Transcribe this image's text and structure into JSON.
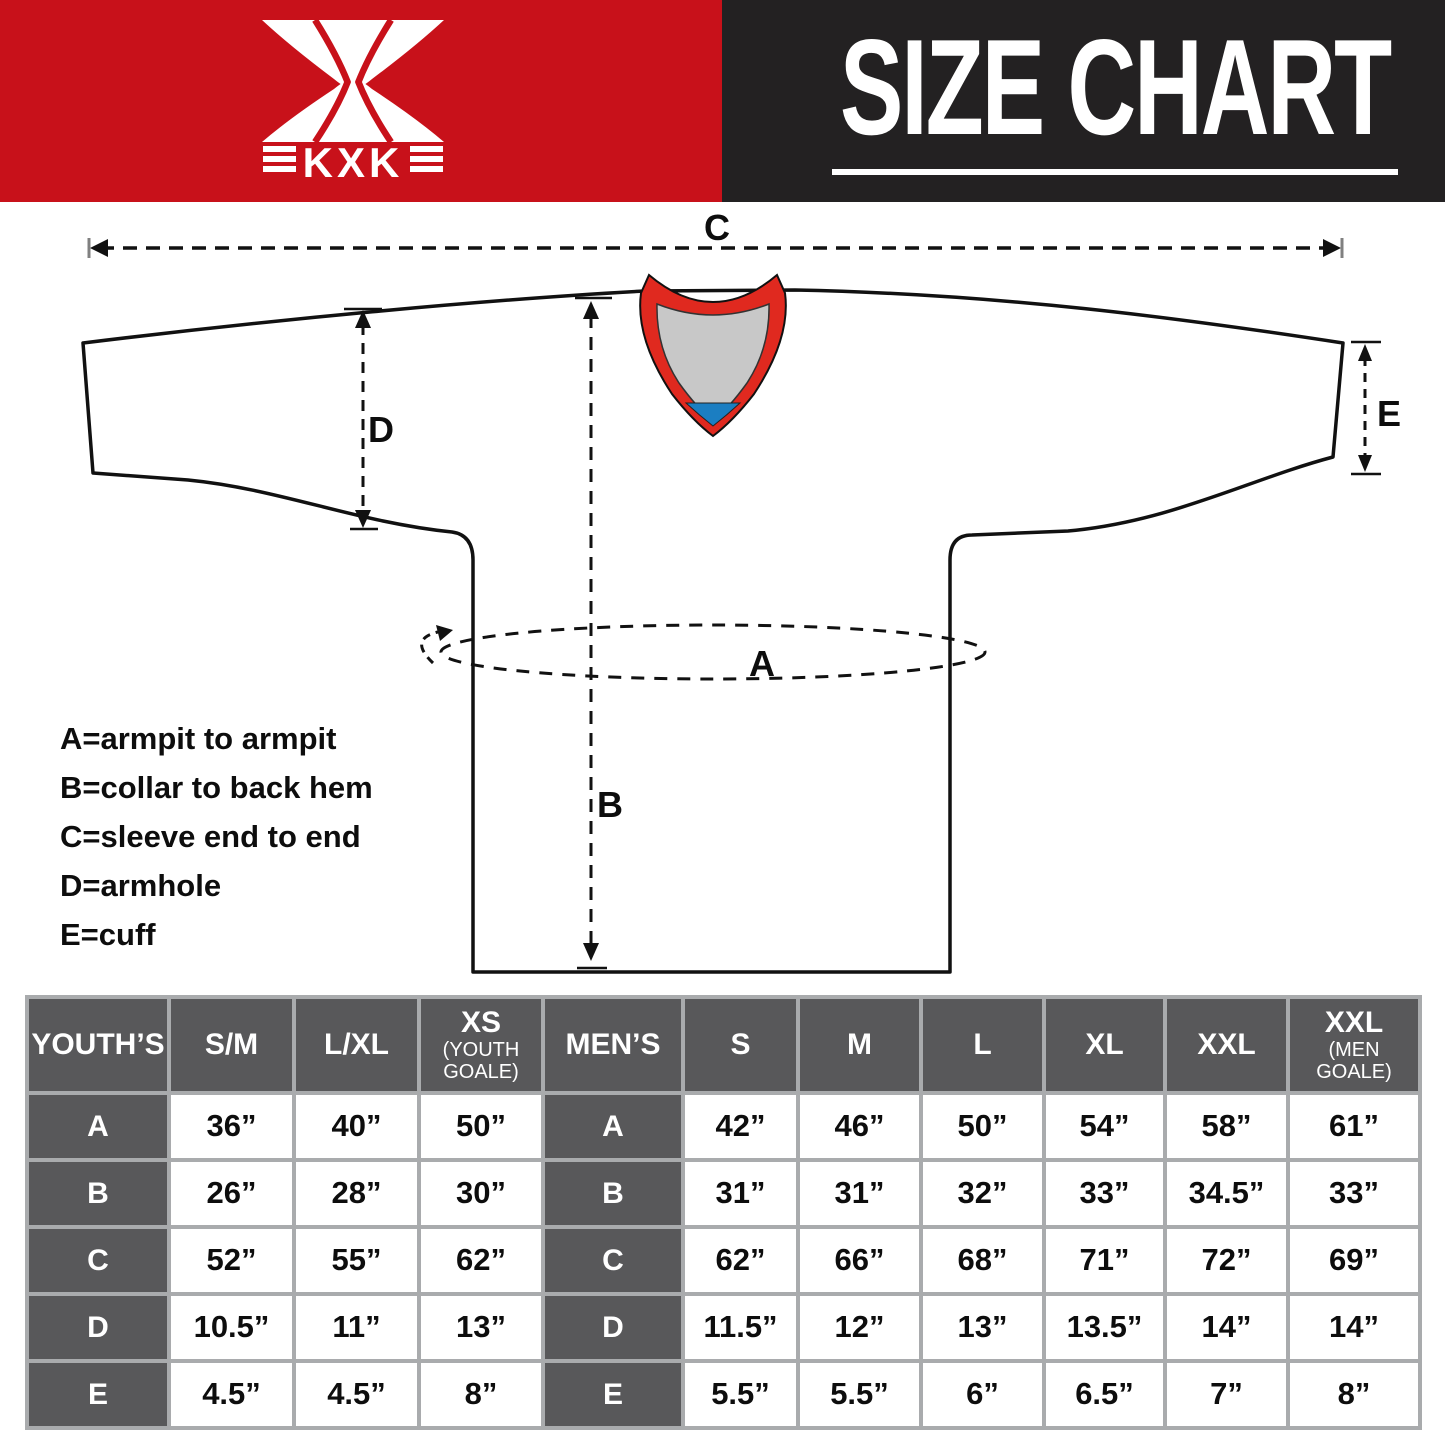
{
  "header": {
    "logo_text": "KXK",
    "title": "SIZE CHART"
  },
  "colors": {
    "brand_red": "#c8111a",
    "header_dark": "#232122",
    "collar_red": "#e0291f",
    "collar_gray": "#c8c8c8",
    "collar_blue": "#1b7ec2",
    "table_header_gray": "#58585a",
    "table_grid_gray": "#a9abad"
  },
  "diagram": {
    "labels": {
      "a": "A",
      "b": "B",
      "c": "C",
      "d": "D",
      "e": "E"
    },
    "legend": [
      "A=armpit to armpit",
      "B=collar to back hem",
      "C=sleeve end to end",
      "D=armhole",
      "E=cuff"
    ]
  },
  "table": {
    "youth": {
      "title": "YOUTH’S",
      "columns": [
        {
          "size": "S/M",
          "note": ""
        },
        {
          "size": "L/XL",
          "note": ""
        },
        {
          "size": "XS",
          "note": "(YOUTH GOALE)"
        }
      ]
    },
    "men": {
      "title": "MEN’S",
      "columns": [
        {
          "size": "S",
          "note": ""
        },
        {
          "size": "M",
          "note": ""
        },
        {
          "size": "L",
          "note": ""
        },
        {
          "size": "XL",
          "note": ""
        },
        {
          "size": "XXL",
          "note": ""
        },
        {
          "size": "XXL",
          "note": "(MEN GOALE)"
        }
      ]
    },
    "rows": [
      {
        "label": "A",
        "youth": [
          "36”",
          "40”",
          "50”"
        ],
        "men": [
          "42”",
          "46”",
          "50”",
          "54”",
          "58”",
          "61”"
        ]
      },
      {
        "label": "B",
        "youth": [
          "26”",
          "28”",
          "30”"
        ],
        "men": [
          "31”",
          "31”",
          "32”",
          "33”",
          "34.5”",
          "33”"
        ]
      },
      {
        "label": "C",
        "youth": [
          "52”",
          "55”",
          "62”"
        ],
        "men": [
          "62”",
          "66”",
          "68”",
          "71”",
          "72”",
          "69”"
        ]
      },
      {
        "label": "D",
        "youth": [
          "10.5”",
          "11”",
          "13”"
        ],
        "men": [
          "11.5”",
          "12”",
          "13”",
          "13.5”",
          "14”",
          "14”"
        ]
      },
      {
        "label": "E",
        "youth": [
          "4.5”",
          "4.5”",
          "8”"
        ],
        "men": [
          "5.5”",
          "5.5”",
          "6”",
          "6.5”",
          "7”",
          "8”"
        ]
      }
    ]
  }
}
